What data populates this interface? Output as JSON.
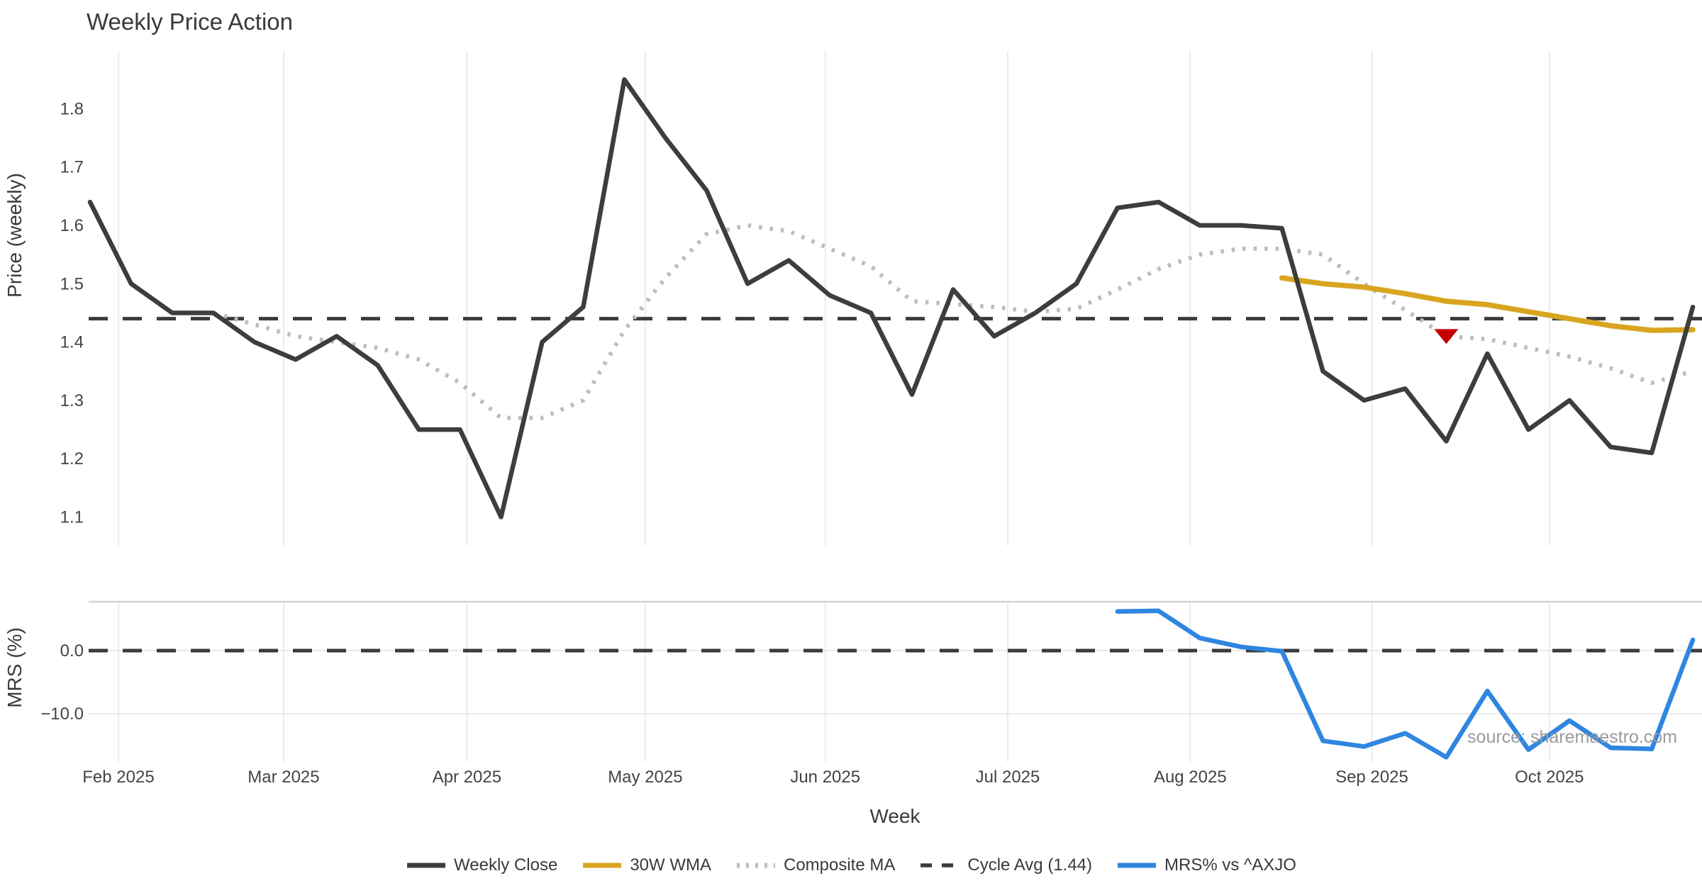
{
  "chart_data": {
    "type": "line",
    "title": "Weekly Price Action",
    "watermark": "source: sharemaestro.com",
    "colors": {
      "weekly_close": "#3d3d3d",
      "wma": "#d9a521",
      "composite": "#bdbdbd",
      "cycle_avg": "#3a3a3a",
      "mrs": "#2e86e0",
      "marker": "#c40000",
      "grid": "#ebebf0",
      "panel_border": "#d4d4d4",
      "minor_grid": "#e8e8e8",
      "tick_text": "#444444",
      "title_text": "#3a3a3a"
    },
    "x_axis": {
      "title": "Week",
      "unit": "week_index",
      "ticks": [
        {
          "label": "Feb 2025",
          "week": 0.69
        },
        {
          "label": "Mar 2025",
          "week": 4.71
        },
        {
          "label": "Apr 2025",
          "week": 9.17
        },
        {
          "label": "May 2025",
          "week": 13.51
        },
        {
          "label": "Jun 2025",
          "week": 17.89
        },
        {
          "label": "Jul 2025",
          "week": 22.33
        },
        {
          "label": "Aug 2025",
          "week": 26.77
        },
        {
          "label": "Sep 2025",
          "week": 31.19
        },
        {
          "label": "Oct 2025",
          "week": 35.51
        }
      ]
    },
    "price_panel": {
      "ylabel": "Price (weekly)",
      "ylim": [
        1.05,
        1.9
      ],
      "yticks": [
        "1.8",
        "1.7",
        "1.6",
        "1.5",
        "1.4",
        "1.3",
        "1.2",
        "1.1"
      ],
      "cycle_avg_value": 1.44,
      "series": [
        {
          "name": "Weekly Close",
          "style": "solid",
          "color_key": "weekly_close",
          "width": 6.5,
          "start_week": 0,
          "values": [
            1.64,
            1.5,
            1.45,
            1.45,
            1.4,
            1.37,
            1.41,
            1.36,
            1.25,
            1.25,
            1.1,
            1.4,
            1.46,
            1.85,
            1.75,
            1.66,
            1.5,
            1.54,
            1.48,
            1.45,
            1.31,
            1.49,
            1.41,
            1.45,
            1.5,
            1.63,
            1.64,
            1.6,
            1.6,
            1.595,
            1.35,
            1.3,
            1.32,
            1.23,
            1.38,
            1.25,
            1.3,
            1.22,
            1.21,
            1.46
          ]
        },
        {
          "name": "30W WMA",
          "style": "solid",
          "color_key": "wma",
          "width": 7.5,
          "start_week": 29,
          "values": [
            1.51,
            1.5,
            1.494,
            1.483,
            1.47,
            1.464,
            1.452,
            1.44,
            1.428,
            1.42,
            1.421
          ]
        },
        {
          "name": "Composite MA",
          "style": "dotted",
          "color_key": "composite",
          "width": 6,
          "start_week": 3,
          "values": [
            1.45,
            1.43,
            1.41,
            1.4,
            1.39,
            1.37,
            1.33,
            1.27,
            1.27,
            1.3,
            1.42,
            1.51,
            1.585,
            1.6,
            1.59,
            1.56,
            1.53,
            1.47,
            1.465,
            1.46,
            1.452,
            1.457,
            1.49,
            1.525,
            1.55,
            1.56,
            1.56,
            1.55,
            1.5,
            1.455,
            1.41,
            1.405,
            1.39,
            1.375,
            1.355,
            1.33,
            1.35
          ]
        },
        {
          "name": "Cycle Avg (1.44)",
          "style": "dashed",
          "color_key": "cycle_avg",
          "width": 5,
          "hline": 1.44
        }
      ],
      "marker": {
        "shape": "triangle-down",
        "week": 33,
        "value": 1.41,
        "color_key": "marker"
      }
    },
    "mrs_panel": {
      "ylabel": "MRS (%)",
      "ylim": [
        -17.8,
        7.8
      ],
      "yticks": [
        {
          "label": "0.0",
          "value": 0
        },
        {
          "label": "−10.0",
          "value": -10
        }
      ],
      "zero_line": 0,
      "series": [
        {
          "name": "MRS% vs ^AXJO",
          "style": "solid",
          "color_key": "mrs",
          "width": 6.5,
          "start_week": 25,
          "values": [
            6.2,
            6.3,
            2.0,
            0.6,
            -0.1,
            -14.3,
            -15.2,
            -13.1,
            -16.9,
            -6.4,
            -15.7,
            -11.1,
            -15.4,
            -15.6,
            1.7
          ]
        }
      ]
    },
    "legend": [
      {
        "label": "Weekly Close",
        "color_key": "weekly_close",
        "style": "solid"
      },
      {
        "label": "30W WMA",
        "color_key": "wma",
        "style": "solid"
      },
      {
        "label": "Composite MA",
        "color_key": "composite",
        "style": "dotted"
      },
      {
        "label": "Cycle Avg (1.44)",
        "color_key": "cycle_avg",
        "style": "dashed"
      },
      {
        "label": "MRS% vs ^AXJO",
        "color_key": "mrs",
        "style": "solid"
      }
    ]
  }
}
